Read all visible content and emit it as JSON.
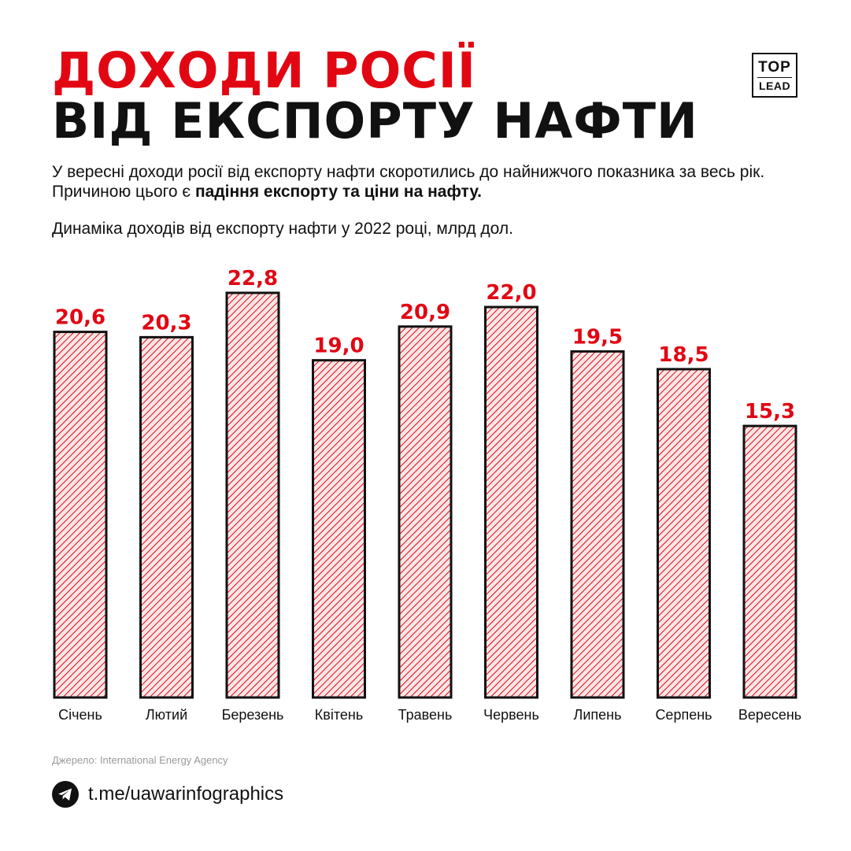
{
  "header": {
    "title_line1": "ДОХОДИ РОСІЇ",
    "title_line2": "ВІД ЕКСПОРТУ НАФТИ",
    "logo_top": "TOP",
    "logo_bottom": "LEAD"
  },
  "description": {
    "text": "У вересні доходи росії від експорту нафти скоротились до найнижчого показника за весь рік. Причиною цього є ",
    "bold": "падіння експорту та ціни на нафту."
  },
  "colors": {
    "accent": "#e20613",
    "text": "#111111",
    "bar_fill": "#fbe6e6",
    "hatch": "#e20613"
  },
  "chart_data": {
    "type": "bar",
    "title": "Динаміка доходів від експорту нафти у 2022 році, млрд дол.",
    "categories": [
      "Січень",
      "Лютий",
      "Березень",
      "Квітень",
      "Травень",
      "Червень",
      "Липень",
      "Серпень",
      "Вересень"
    ],
    "values": [
      20.6,
      20.3,
      22.8,
      19.0,
      20.9,
      22.0,
      19.5,
      18.5,
      15.3
    ],
    "value_labels": [
      "20,6",
      "20,3",
      "22,8",
      "19,0",
      "20,9",
      "22,0",
      "19,5",
      "18,5",
      "15,3"
    ],
    "ylim": [
      0,
      22.8
    ],
    "grid": false,
    "xlabel": "",
    "ylabel": ""
  },
  "footer": {
    "source": "Джерело: International Energy Agency",
    "link": "t.me/uawarinfographics",
    "link_icon": "telegram-icon"
  }
}
